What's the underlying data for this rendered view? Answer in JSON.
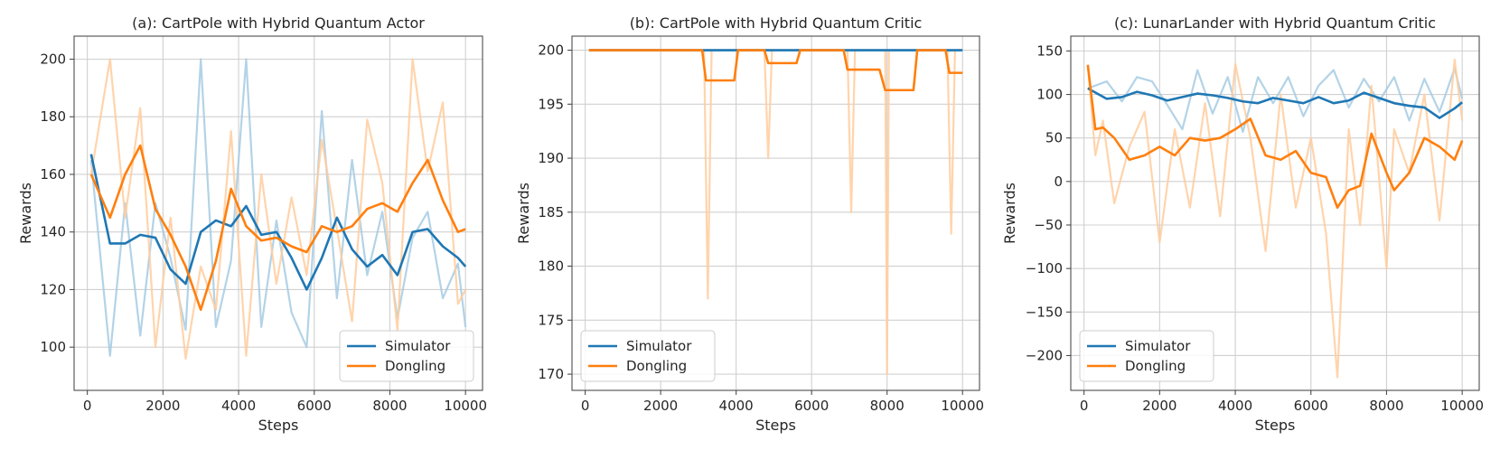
{
  "colors": {
    "simulator": "#1f77b4",
    "dongling": "#ff7f0e",
    "simulator_raw": "#a6cbe3",
    "dongling_raw": "#ffcc9e",
    "grid": "#d0d0d0",
    "axis": "#4d4d4d"
  },
  "chart_data": [
    {
      "type": "line",
      "title": "(a): CartPole with Hybrid Quantum Actor",
      "xlabel": "Steps",
      "ylabel": "Rewards",
      "xlim": [
        -350,
        10450
      ],
      "ylim": [
        85,
        208
      ],
      "xticks": [
        0,
        2000,
        4000,
        6000,
        8000,
        10000
      ],
      "yticks": [
        100,
        120,
        140,
        160,
        180,
        200
      ],
      "grid": true,
      "legend_position": "lower-right",
      "series": [
        {
          "name": "Simulator",
          "color_key": "simulator",
          "raw_color_key": "simulator_raw",
          "x": [
            100,
            600,
            1000,
            1400,
            1800,
            2200,
            2600,
            3000,
            3400,
            3800,
            4200,
            4600,
            5000,
            5400,
            5800,
            6200,
            6600,
            7000,
            7400,
            7800,
            8200,
            8600,
            9000,
            9400,
            9800,
            10000
          ],
          "y": [
            167,
            136,
            136,
            139,
            138,
            127,
            122,
            140,
            144,
            142,
            149,
            139,
            140,
            131,
            120,
            131,
            145,
            134,
            128,
            132,
            125,
            140,
            141,
            135,
            131,
            128
          ],
          "raw_y": [
            165,
            97,
            150,
            104,
            150,
            131,
            106,
            200,
            107,
            130,
            200,
            107,
            144,
            112,
            100,
            182,
            117,
            165,
            125,
            147,
            110,
            138,
            147,
            117,
            129,
            107
          ]
        },
        {
          "name": "Dongling",
          "color_key": "dongling",
          "raw_color_key": "dongling_raw",
          "x": [
            100,
            600,
            1000,
            1400,
            1800,
            2200,
            2600,
            3000,
            3400,
            3800,
            4200,
            4600,
            5000,
            5400,
            5800,
            6200,
            6600,
            7000,
            7400,
            7800,
            8200,
            8600,
            9000,
            9400,
            9800,
            10000
          ],
          "y": [
            160,
            145,
            160,
            170,
            148,
            139,
            128,
            113,
            130,
            155,
            142,
            137,
            138,
            135,
            133,
            142,
            140,
            142,
            148,
            150,
            147,
            157,
            165,
            151,
            140,
            141
          ],
          "raw_y": [
            160,
            200,
            145,
            183,
            100,
            145,
            96,
            128,
            113,
            175,
            97,
            160,
            122,
            152,
            125,
            172,
            141,
            109,
            179,
            157,
            106,
            200,
            161,
            185,
            115,
            120
          ]
        }
      ]
    },
    {
      "type": "line",
      "title": "(b): CartPole with Hybrid Quantum Critic",
      "xlabel": "Steps",
      "ylabel": "Rewards",
      "xlim": [
        -350,
        10450
      ],
      "ylim": [
        168.5,
        201.3
      ],
      "xticks": [
        0,
        2000,
        4000,
        6000,
        8000,
        10000
      ],
      "yticks": [
        170,
        175,
        180,
        185,
        190,
        195,
        200
      ],
      "grid": true,
      "legend_position": "lower-left",
      "series": [
        {
          "name": "Simulator",
          "color_key": "simulator",
          "raw_color_key": "simulator_raw",
          "x": [
            100,
            10000
          ],
          "y": [
            200,
            200
          ],
          "raw_x": [
            100,
            10000
          ],
          "raw_y": [
            200,
            200
          ]
        },
        {
          "name": "Dongling",
          "color_key": "dongling",
          "raw_color_key": "dongling_raw",
          "x": [
            100,
            3100,
            3200,
            3950,
            4050,
            4750,
            4850,
            5600,
            5700,
            6850,
            6950,
            7800,
            7950,
            8700,
            8800,
            9550,
            9650,
            10000
          ],
          "y": [
            200,
            200,
            197.2,
            197.2,
            200,
            200,
            198.8,
            198.8,
            200,
            200,
            198.2,
            198.2,
            196.3,
            196.3,
            200,
            200,
            197.9,
            197.9
          ],
          "raw_x": [
            100,
            3150,
            3250,
            3350,
            4750,
            4850,
            4950,
            6950,
            7050,
            7150,
            7950,
            8000,
            8050,
            9600,
            9700,
            9800,
            10000
          ],
          "raw_y": [
            200,
            200,
            177,
            200,
            200,
            190,
            200,
            200,
            185,
            200,
            200,
            170,
            200,
            200,
            183,
            200,
            200
          ]
        }
      ]
    },
    {
      "type": "line",
      "title": "(c): LunarLander with Hybrid Quantum Critic",
      "xlabel": "Steps",
      "ylabel": "Rewards",
      "xlim": [
        -350,
        10450
      ],
      "ylim": [
        -240,
        167
      ],
      "xticks": [
        0,
        2000,
        4000,
        6000,
        8000,
        10000
      ],
      "yticks": [
        -200,
        -150,
        -100,
        -50,
        0,
        50,
        100,
        150
      ],
      "grid": true,
      "legend_position": "lower-left",
      "series": [
        {
          "name": "Simulator",
          "color_key": "simulator",
          "raw_color_key": "simulator_raw",
          "x": [
            100,
            600,
            1000,
            1400,
            1800,
            2200,
            2600,
            3000,
            3400,
            3800,
            4200,
            4600,
            5000,
            5400,
            5800,
            6200,
            6600,
            7000,
            7400,
            7800,
            8200,
            8600,
            9000,
            9400,
            9800,
            10000
          ],
          "y": [
            107,
            95,
            97,
            103,
            99,
            93,
            97,
            101,
            99,
            96,
            92,
            90,
            96,
            93,
            90,
            97,
            90,
            93,
            102,
            96,
            90,
            87,
            85,
            73,
            84,
            91
          ],
          "raw_y": [
            107,
            115,
            92,
            120,
            115,
            88,
            60,
            128,
            78,
            120,
            57,
            120,
            90,
            120,
            75,
            110,
            128,
            85,
            118,
            92,
            120,
            70,
            118,
            80,
            130,
            95
          ]
        },
        {
          "name": "Dongling",
          "color_key": "dongling",
          "raw_color_key": "dongling_raw",
          "x": [
            100,
            300,
            500,
            800,
            1200,
            1600,
            2000,
            2400,
            2800,
            3200,
            3600,
            4000,
            4400,
            4800,
            5200,
            5600,
            6000,
            6400,
            6700,
            7000,
            7300,
            7600,
            8000,
            8200,
            8600,
            9000,
            9400,
            9800,
            10000
          ],
          "y": [
            134,
            60,
            62,
            50,
            25,
            30,
            40,
            30,
            50,
            47,
            50,
            60,
            72,
            30,
            25,
            35,
            10,
            5,
            -30,
            -10,
            -5,
            55,
            10,
            -10,
            10,
            50,
            40,
            25,
            47
          ],
          "raw_y": [
            134,
            30,
            70,
            -25,
            40,
            80,
            -70,
            60,
            -30,
            90,
            -40,
            135,
            50,
            -80,
            100,
            -30,
            50,
            -60,
            -225,
            60,
            -50,
            110,
            -100,
            60,
            10,
            100,
            -45,
            140,
            70
          ]
        }
      ]
    }
  ]
}
